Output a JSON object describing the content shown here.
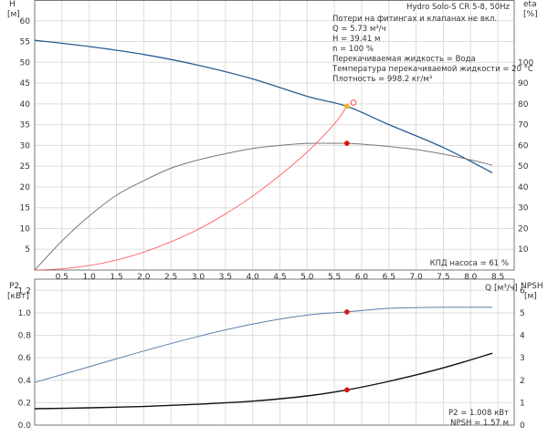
{
  "chart_data": [
    {
      "type": "line",
      "title": "Hydro Solo-S CR 5-8, 50Hz",
      "annotations": [
        "Потери на фитингах и клапанах не вкл.",
        "Q = 5.73 м³/ч",
        "H = 39.41 м",
        "n = 100 %",
        "Перекачиваемая жидкость = Вода",
        "Температура перекачиваемой жидкости = 20 °C",
        "Плотность = 998.2 кг/м³"
      ],
      "efficiency_label": "КПД насоса = 61 %",
      "xlabel": "Q [м³/ч]",
      "ylabel_left": "H",
      "ylabel_left_unit": "[м]",
      "ylabel_right": "eta",
      "ylabel_right_unit": "[%]",
      "xlim": [
        0,
        8.8
      ],
      "ylim_left": [
        0,
        65
      ],
      "ylim_right": [
        0,
        130
      ],
      "x_ticks": [
        "0.5",
        "1.0",
        "1.5",
        "2.0",
        "2.5",
        "3.0",
        "3.5",
        "4.0",
        "4.5",
        "5.0",
        "5.5",
        "6.0",
        "6.5",
        "7.0",
        "7.5",
        "8.0",
        "8.5"
      ],
      "y_left_ticks": [
        "5",
        "10",
        "15",
        "20",
        "25",
        "30",
        "35",
        "40",
        "45",
        "50",
        "55",
        "60"
      ],
      "y_right_ticks": [
        "10",
        "20",
        "30",
        "40",
        "50",
        "60",
        "70",
        "80",
        "90",
        "100"
      ],
      "grid": true,
      "series": [
        {
          "axis": "left",
          "color": "#2a5d93",
          "x": [
            0,
            1,
            2,
            3,
            4,
            5,
            5.73,
            6.5,
            7.5,
            8.4
          ],
          "values": [
            55.3,
            53.8,
            51.9,
            49.3,
            46.0,
            41.8,
            39.41,
            35.0,
            29.5,
            23.4
          ]
        },
        {
          "axis": "right",
          "color": "#777777",
          "x": [
            0,
            0.5,
            1,
            1.5,
            2,
            2.5,
            3,
            3.5,
            4,
            4.5,
            5,
            5.5,
            5.73,
            6,
            6.5,
            7,
            7.5,
            8,
            8.4
          ],
          "values": [
            0,
            14,
            26,
            36,
            43,
            49,
            53,
            56,
            58.5,
            60,
            61,
            61,
            61,
            60.6,
            59.5,
            58,
            55.8,
            53,
            50.5
          ]
        },
        {
          "axis": "left",
          "color": "#ff4d4d",
          "x": [
            0,
            0.5,
            1,
            1.5,
            2,
            2.5,
            3,
            3.5,
            4,
            4.5,
            5,
            5.5,
            5.73
          ],
          "values": [
            0,
            0.3,
            1.1,
            2.4,
            4.3,
            6.8,
            9.8,
            13.5,
            17.8,
            22.8,
            28.4,
            35.2,
            39.41
          ]
        }
      ],
      "points": [
        {
          "x": 5.73,
          "value": 39.41,
          "axis": "left",
          "color": "#f0b020"
        },
        {
          "x": 5.73,
          "value": 61,
          "axis": "right",
          "color": "#dd1111"
        },
        {
          "x": 5.85,
          "value": 80.6,
          "axis": "right",
          "color": "#ff4d4d"
        }
      ]
    },
    {
      "type": "line",
      "ylabel_left": "P2",
      "ylabel_left_unit": "[кВт]",
      "ylabel_right": "NPSH",
      "ylabel_right_unit": "[м]",
      "ylim_left": [
        0,
        1.3
      ],
      "ylim_right": [
        0,
        6.5
      ],
      "y_left_ticks": [
        "0.0",
        "0.2",
        "0.4",
        "0.6",
        "0.8",
        "1.0",
        "1.2"
      ],
      "y_right_ticks": [
        "0",
        "1",
        "2",
        "3",
        "4",
        "5",
        "6"
      ],
      "grid": true,
      "readout": [
        "P2 = 1.008 кВт",
        "NPSH = 1.57 м"
      ],
      "series": [
        {
          "axis": "left",
          "color": "#5a7fa8",
          "x": [
            0,
            1,
            2,
            3,
            4,
            5,
            5.73,
            6.5,
            7.5,
            8.4
          ],
          "values": [
            0.38,
            0.52,
            0.66,
            0.79,
            0.9,
            0.98,
            1.008,
            1.04,
            1.05,
            1.05
          ]
        },
        {
          "axis": "right",
          "color": "#111111",
          "x": [
            0,
            1,
            2,
            3,
            4,
            5,
            5.73,
            6.5,
            7.5,
            8.4
          ],
          "values": [
            0.73,
            0.77,
            0.83,
            0.93,
            1.07,
            1.3,
            1.57,
            1.95,
            2.55,
            3.2
          ]
        }
      ],
      "points": [
        {
          "x": 5.73,
          "value": 1.008,
          "axis": "left",
          "color": "#dd1111"
        },
        {
          "x": 5.73,
          "value": 1.57,
          "axis": "right",
          "color": "#dd1111"
        }
      ]
    }
  ]
}
